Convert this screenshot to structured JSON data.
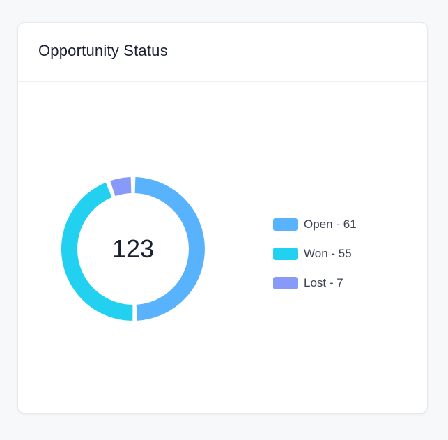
{
  "card": {
    "title": "Opportunity Status"
  },
  "chart_data": {
    "type": "pie",
    "variant": "donut",
    "title": "Opportunity Status",
    "center_label": "123",
    "legend_position": "right",
    "slices": [
      {
        "name": "Open",
        "value": 61,
        "color": "#58b2fc",
        "legend_label": "Open - 61"
      },
      {
        "name": "Won",
        "value": 55,
        "color": "#22d0ef",
        "legend_label": "Won - 55"
      },
      {
        "name": "Lost",
        "value": 7,
        "color": "#8799f9",
        "legend_label": "Lost - 7"
      }
    ]
  }
}
